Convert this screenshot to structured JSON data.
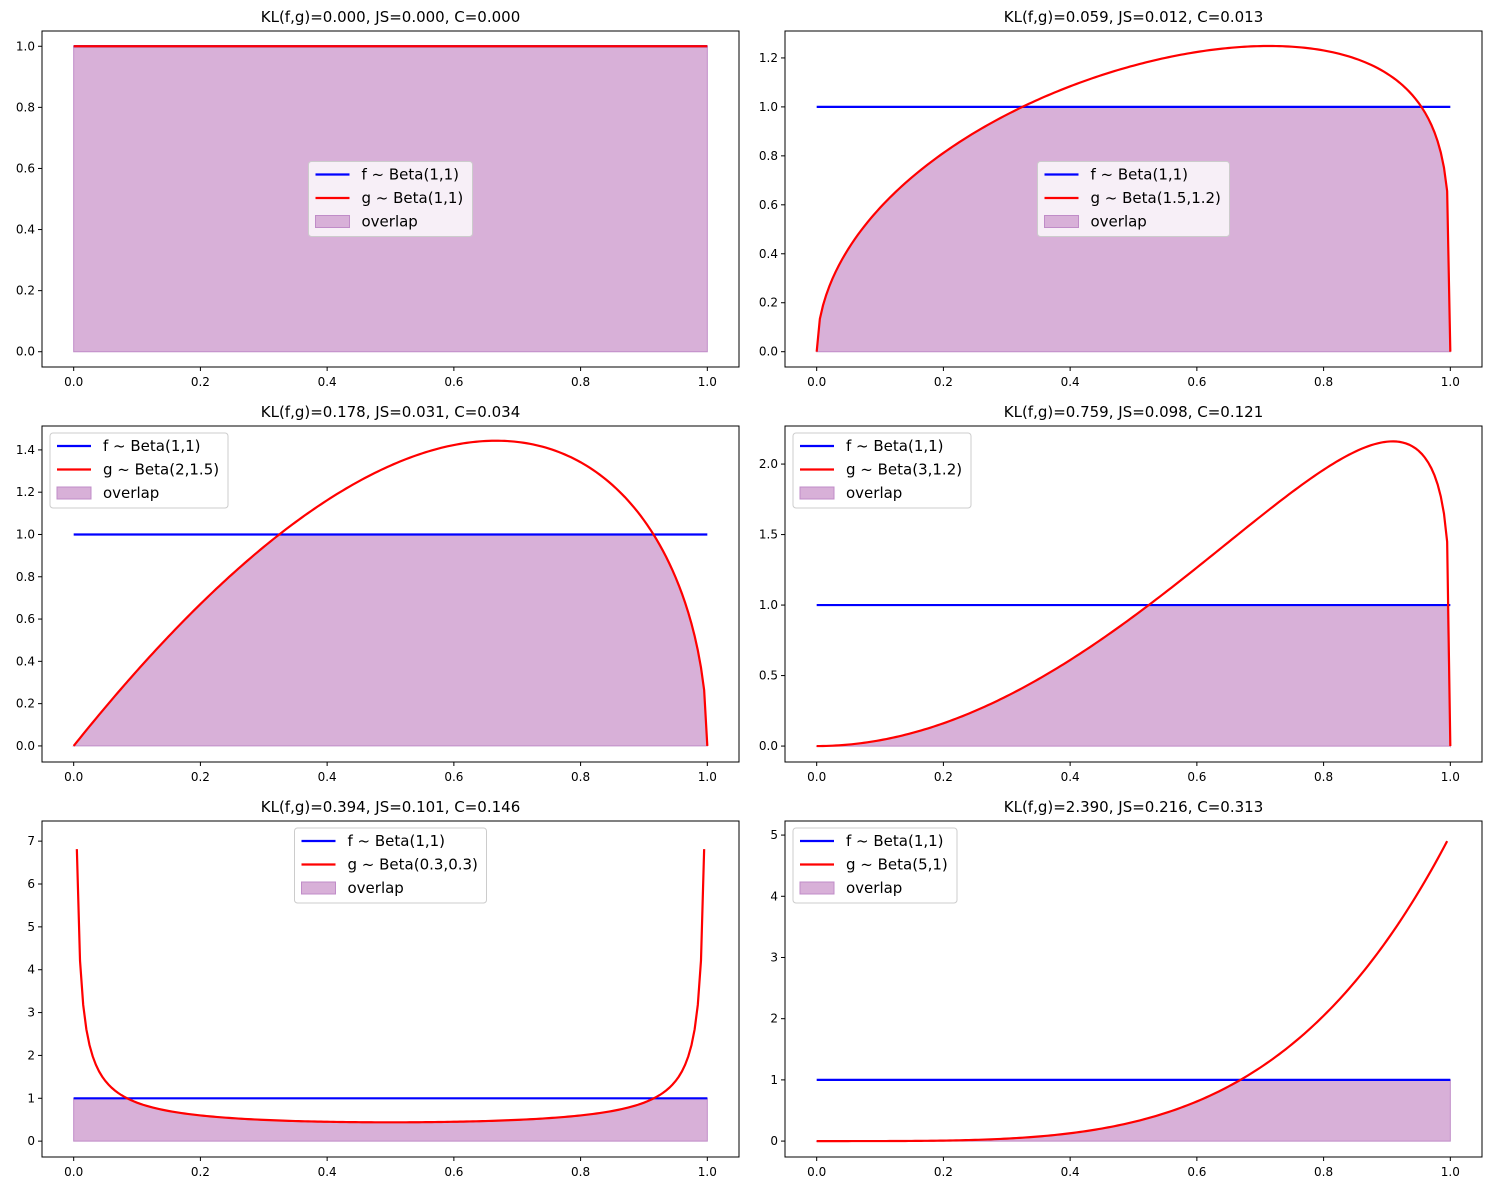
{
  "chart_data": [
    {
      "type": "line",
      "title": "KL(f,g)=0.000, JS=0.000, C=0.000",
      "f": {
        "label": "f ~ Beta(1,1)",
        "a": 1,
        "b": 1
      },
      "g": {
        "label": "g ~ Beta(1,1)",
        "a": 1,
        "b": 1
      },
      "overlap_label": "overlap",
      "xlim": [
        -0.05,
        1.05
      ],
      "ylim": [
        -0.05,
        1.05
      ],
      "xticks": [
        "0.0",
        "0.2",
        "0.4",
        "0.6",
        "0.8",
        "1.0"
      ],
      "yticks": [
        "0.0",
        "0.2",
        "0.4",
        "0.6",
        "0.8",
        "1.0"
      ],
      "legend": "center"
    },
    {
      "type": "line",
      "title": "KL(f,g)=0.059, JS=0.012, C=0.013",
      "f": {
        "label": "f ~ Beta(1,1)",
        "a": 1,
        "b": 1
      },
      "g": {
        "label": "g ~ Beta(1.5,1.2)",
        "a": 1.5,
        "b": 1.2
      },
      "overlap_label": "overlap",
      "xlim": [
        -0.05,
        1.05
      ],
      "ylim": [
        -0.0625,
        1.31
      ],
      "xticks": [
        "0.0",
        "0.2",
        "0.4",
        "0.6",
        "0.8",
        "1.0"
      ],
      "yticks": [
        "0.0",
        "0.2",
        "0.4",
        "0.6",
        "0.8",
        "1.0",
        "1.2"
      ],
      "legend": "center"
    },
    {
      "type": "line",
      "title": "KL(f,g)=0.178, JS=0.031, C=0.034",
      "f": {
        "label": "f ~ Beta(1,1)",
        "a": 1,
        "b": 1
      },
      "g": {
        "label": "g ~ Beta(2,1.5)",
        "a": 2,
        "b": 1.5
      },
      "overlap_label": "overlap",
      "xlim": [
        -0.05,
        1.05
      ],
      "ylim": [
        -0.076,
        1.513
      ],
      "xticks": [
        "0.0",
        "0.2",
        "0.4",
        "0.6",
        "0.8",
        "1.0"
      ],
      "yticks": [
        "0.0",
        "0.2",
        "0.4",
        "0.6",
        "0.8",
        "1.0",
        "1.2",
        "1.4"
      ],
      "legend": "upper left"
    },
    {
      "type": "line",
      "title": "KL(f,g)=0.759, JS=0.098, C=0.121",
      "f": {
        "label": "f ~ Beta(1,1)",
        "a": 1,
        "b": 1
      },
      "g": {
        "label": "g ~ Beta(3,1.2)",
        "a": 3,
        "b": 1.2
      },
      "overlap_label": "overlap",
      "xlim": [
        -0.05,
        1.05
      ],
      "ylim": [
        -0.113,
        2.27
      ],
      "xticks": [
        "0.0",
        "0.2",
        "0.4",
        "0.6",
        "0.8",
        "1.0"
      ],
      "yticks": [
        "0.0",
        "0.5",
        "1.0",
        "1.5",
        "2.0"
      ],
      "legend": "upper left"
    },
    {
      "type": "line",
      "title": "KL(f,g)=0.394, JS=0.101, C=0.146",
      "f": {
        "label": "f ~ Beta(1,1)",
        "a": 1,
        "b": 1
      },
      "g": {
        "label": "g ~ Beta(0.3,0.3)",
        "a": 0.3,
        "b": 0.3
      },
      "overlap_label": "overlap",
      "xlim": [
        -0.05,
        1.05
      ],
      "ylim": [
        -0.37,
        7.47
      ],
      "xticks": [
        "0.0",
        "0.2",
        "0.4",
        "0.6",
        "0.8",
        "1.0"
      ],
      "yticks": [
        "0",
        "1",
        "2",
        "3",
        "4",
        "5",
        "6",
        "7"
      ],
      "legend": "upper center"
    },
    {
      "type": "line",
      "title": "KL(f,g)=2.390, JS=0.216, C=0.313",
      "f": {
        "label": "f ~ Beta(1,1)",
        "a": 1,
        "b": 1
      },
      "g": {
        "label": "g ~ Beta(5,1)",
        "a": 5,
        "b": 1
      },
      "overlap_label": "overlap",
      "xlim": [
        -0.05,
        1.05
      ],
      "ylim": [
        -0.26,
        5.23
      ],
      "xticks": [
        "0.0",
        "0.2",
        "0.4",
        "0.6",
        "0.8",
        "1.0"
      ],
      "yticks": [
        "0",
        "1",
        "2",
        "3",
        "4",
        "5"
      ],
      "legend": "upper left"
    }
  ],
  "colors": {
    "f": "#0000ff",
    "g": "#ff0000",
    "overlap_fill": "#d8b0d8",
    "overlap_edge": "#c08cc8"
  }
}
